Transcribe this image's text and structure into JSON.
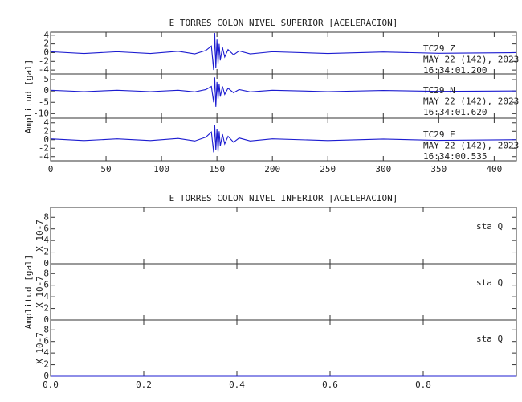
{
  "chart_data": [
    {
      "type": "line",
      "title": "E TORRES COLON NIVEL SUPERIOR [ACELERACION]",
      "ylabel": "Amplitud [gal]",
      "xlim": [
        0,
        420
      ],
      "xticks": [
        0,
        50,
        100,
        150,
        200,
        250,
        300,
        350,
        400
      ],
      "panels": [
        {
          "ylim": [
            -4.9,
            4.7
          ],
          "yticks": [
            4,
            2,
            0,
            -2,
            -4
          ],
          "annotations": [
            "TC29   Z",
            "MAY 22 (142), 2023",
            "16:34:01.200"
          ],
          "series": [
            {
              "color": "#1c1cd0",
              "x": [
                0,
                30,
                60,
                90,
                115,
                130,
                140,
                145,
                147,
                148,
                149,
                150,
                151,
                152,
                153,
                155,
                157,
                160,
                165,
                170,
                180,
                200,
                250,
                300,
                350,
                420
              ],
              "values": [
                0.2,
                -0.2,
                0.2,
                -0.2,
                0.3,
                -0.3,
                0.5,
                1.5,
                -4,
                4.5,
                -3.5,
                3,
                -2.5,
                2,
                -1.8,
                1.2,
                -1,
                0.7,
                -0.5,
                0.4,
                -0.3,
                0.2,
                -0.2,
                0.15,
                -0.15,
                0
              ]
            }
          ]
        },
        {
          "ylim": [
            -12,
            7.5
          ],
          "yticks": [
            5,
            0,
            -5,
            -10
          ],
          "annotations": [
            "TC29   N",
            "MAY 22 (142), 2023",
            "16:34:01.620"
          ],
          "series": [
            {
              "color": "#1c1cd0",
              "x": [
                0,
                30,
                60,
                90,
                115,
                130,
                140,
                145,
                147,
                148,
                149,
                150,
                151,
                152,
                153,
                155,
                157,
                160,
                165,
                170,
                180,
                200,
                250,
                300,
                350,
                420
              ],
              "values": [
                0.3,
                -0.3,
                0.3,
                -0.3,
                0.3,
                -0.4,
                0.6,
                2,
                -5,
                6,
                -7,
                4,
                -3.5,
                3,
                -2.5,
                2,
                -1.5,
                1.2,
                -0.8,
                0.6,
                -0.4,
                0.3,
                -0.3,
                0.2,
                -0.2,
                0
              ]
            }
          ]
        },
        {
          "ylim": [
            -5,
            5.1
          ],
          "yticks": [
            4,
            2,
            0,
            -2,
            -4
          ],
          "annotations": [
            "TC29   E",
            "MAY 22 (142), 2023",
            "16:34:00.535"
          ],
          "series": [
            {
              "color": "#1c1cd0",
              "x": [
                0,
                30,
                60,
                90,
                115,
                130,
                140,
                145,
                147,
                148,
                149,
                150,
                151,
                152,
                153,
                155,
                157,
                160,
                165,
                170,
                180,
                200,
                250,
                300,
                350,
                420
              ],
              "values": [
                0.2,
                -0.2,
                0.2,
                -0.2,
                0.3,
                -0.3,
                0.6,
                1.8,
                -3,
                3.5,
                -2.5,
                2.5,
                -2.8,
                2,
                -1.5,
                1.3,
                -1,
                0.8,
                -0.6,
                0.4,
                -0.3,
                0.2,
                -0.2,
                0.15,
                -0.15,
                0
              ]
            }
          ]
        }
      ]
    },
    {
      "type": "line",
      "title": "E TORRES COLON NIVEL INFERIOR [ACELERACION]",
      "ylabel": "Amplitud [gal]",
      "xlim": [
        0,
        1
      ],
      "xticks": [
        {
          "value": 0,
          "label": "0.0"
        },
        0.2,
        0.4,
        0.6,
        0.8
      ],
      "panels": [
        {
          "ylim": [
            0,
            9.7
          ],
          "yticks": [
            0,
            2,
            4,
            6,
            8
          ],
          "scale_label": "X 10-7",
          "annotations": [
            "sta   Q"
          ],
          "series": [
            {
              "color": "#1c1cd0",
              "x": [
                0,
                1
              ],
              "values": [
                0,
                0
              ]
            }
          ]
        },
        {
          "ylim": [
            0,
            9.7
          ],
          "yticks": [
            0,
            2,
            4,
            6,
            8
          ],
          "scale_label": "X 10-7",
          "annotations": [
            "sta   Q"
          ],
          "series": [
            {
              "color": "#1c1cd0",
              "x": [
                0,
                1
              ],
              "values": [
                0,
                0
              ]
            }
          ]
        },
        {
          "ylim": [
            0,
            9.7
          ],
          "yticks": [
            0,
            2,
            4,
            6,
            8
          ],
          "scale_label": "X 10-7",
          "annotations": [
            "sta   Q"
          ],
          "series": [
            {
              "color": "#1c1cd0",
              "x": [
                0,
                1
              ],
              "values": [
                0,
                0
              ]
            }
          ]
        }
      ]
    }
  ]
}
